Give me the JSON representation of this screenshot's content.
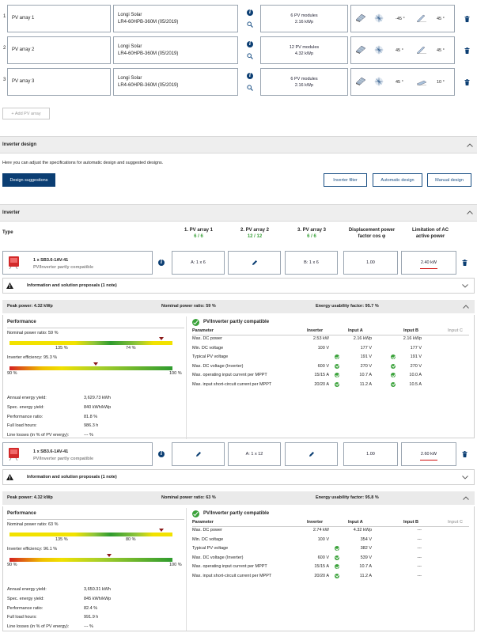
{
  "pv_arrays": [
    {
      "num": "1",
      "name": "PV array 1",
      "module_line1": "Longi Solar",
      "module_line2": "LR4-60HPB-360M (05/2019)",
      "modules": "6 PV modules",
      "power": "2.16 kWp",
      "azimuth": "-45 °",
      "tilt": "45 °"
    },
    {
      "num": "2",
      "name": "PV array 2",
      "module_line1": "Longi Solar",
      "module_line2": "LR4-60HPB-360M (05/2019)",
      "modules": "12 PV modules",
      "power": "4.32 kWp",
      "azimuth": "45 °",
      "tilt": "45 °"
    },
    {
      "num": "3",
      "name": "PV array 3",
      "module_line1": "Longi Solar",
      "module_line2": "LR4-60HPB-360M (05/2019)",
      "modules": "6 PV modules",
      "power": "2.16 kWp",
      "azimuth": "45 °",
      "tilt": "10 °"
    }
  ],
  "add_pv_array": "+ Add PV array",
  "inverter_design": {
    "title": "Inverter design",
    "description": "Here you can adjust the specifications for automatic design and suggested designs.",
    "btn_suggestions": "Design suggestions",
    "btn_filter": "Inverter filter",
    "btn_automatic": "Automatic design",
    "btn_manual": "Manual design"
  },
  "inverter_section": {
    "title": "Inverter",
    "col_type": "Type",
    "cols": [
      {
        "label": "1. PV array 1",
        "count": "6 / 6"
      },
      {
        "label": "2. PV array 2",
        "count": "12 / 12"
      },
      {
        "label": "3. PV array 3",
        "count": "6 / 6"
      }
    ],
    "col_cos_l1": "Displacement power",
    "col_cos_l2": "factor cos φ",
    "col_lim_l1": "Limitation of AC",
    "col_lim_l2": "active power"
  },
  "inverters": [
    {
      "name": "1 x SB3.6-1AV-41",
      "status": "PV/Inverter partly compatible",
      "assign": [
        "A: 1 x 6",
        "",
        "B: 1 x 6"
      ],
      "cos": "1.00",
      "limit": "2.40 kW",
      "notes": "Information and solution proposals (1 note)",
      "peak": "Peak power: 4.32 kWp",
      "nominal": "Nominal power ratio: 59 %",
      "energy": "Energy usability factor: 95.7 %",
      "perf_title": "Performance",
      "npr_label": "Nominal power ratio: 59 %",
      "npr_pct": 0.59,
      "npr_t1": "135 %",
      "npr_t2": "74 %",
      "eff_label": "Inverter efficiency: 95.3 %",
      "eff_pct": 0.53,
      "eff_t1": "90 %",
      "eff_t2": "100 %",
      "yield": [
        {
          "label": "Annual energy yield:",
          "value": "3,629.73 kWh"
        },
        {
          "label": "Spec. energy yield:",
          "value": "840 kWh/kWp"
        },
        {
          "label": "Performance ratio:",
          "value": "81.8 %"
        },
        {
          "label": "Full load hours:",
          "value": "986.3 h"
        },
        {
          "label": "Line losses (in % of PV energy):",
          "value": "--- %"
        }
      ],
      "compat_title": "PV/Inverter partly compatible",
      "table_headers": [
        "Parameter",
        "Inverter",
        "Input A",
        "Input B",
        "Input C"
      ],
      "rows": [
        {
          "p": "Max. DC power",
          "inv": "2.53 kW",
          "a": "2.16 kWp",
          "a_chk": false,
          "b": "2.16 kWp",
          "b_chk": false
        },
        {
          "p": "Min. DC voltage",
          "inv": "100 V",
          "a": "177 V",
          "a_chk": false,
          "b": "177 V",
          "b_chk": false
        },
        {
          "p": "Typical PV voltage",
          "inv": "",
          "a": "191 V",
          "a_chk": true,
          "b": "191 V",
          "b_chk": true
        },
        {
          "p": "Max. DC voltage (Inverter)",
          "inv": "600 V",
          "a": "270 V",
          "a_chk": true,
          "b": "270 V",
          "b_chk": true
        },
        {
          "p": "Max. operating input current per MPPT",
          "inv": "15/15 A",
          "a": "10.7 A",
          "a_chk": true,
          "b": "10.0 A",
          "b_chk": true
        },
        {
          "p": "Max. input short-circuit current per MPPT",
          "inv": "20/20 A",
          "a": "11.2 A",
          "a_chk": true,
          "b": "10.5 A",
          "b_chk": true
        }
      ]
    },
    {
      "name": "1 x SB3.6-1AV-41",
      "status": "PV/Inverter partly compatible",
      "assign": [
        "",
        "A: 1 x 12",
        ""
      ],
      "cos": "1.00",
      "limit": "2.60 kW",
      "notes": "Information and solution proposals (1 note)",
      "peak": "Peak power: 4.32 kWp",
      "nominal": "Nominal power ratio: 63 %",
      "energy": "Energy usability factor: 95.8 %",
      "perf_title": "Performance",
      "npr_label": "Nominal power ratio: 63 %",
      "npr_pct": 0.63,
      "npr_t1": "135 %",
      "npr_t2": "80 %",
      "eff_label": "Inverter efficiency: 96.1 %",
      "eff_pct": 0.61,
      "eff_t1": "90 %",
      "eff_t2": "100 %",
      "yield": [
        {
          "label": "Annual energy yield:",
          "value": "3,650.31 kWh"
        },
        {
          "label": "Spec. energy yield:",
          "value": "845 kWh/kWp"
        },
        {
          "label": "Performance ratio:",
          "value": "82.4 %"
        },
        {
          "label": "Full load hours:",
          "value": "991.9 h"
        },
        {
          "label": "Line losses (in % of PV energy):",
          "value": "--- %"
        }
      ],
      "compat_title": "PV/Inverter partly compatible",
      "table_headers": [
        "Parameter",
        "Inverter",
        "Input A",
        "Input B",
        "Input C"
      ],
      "rows": [
        {
          "p": "Max. DC power",
          "inv": "2.74 kW",
          "a": "4.32 kWp",
          "a_chk": false,
          "b": "---",
          "b_chk": false
        },
        {
          "p": "Min. DC voltage",
          "inv": "100 V",
          "a": "354 V",
          "a_chk": false,
          "b": "---",
          "b_chk": false
        },
        {
          "p": "Typical PV voltage",
          "inv": "",
          "a": "382 V",
          "a_chk": true,
          "b": "---",
          "b_chk": false
        },
        {
          "p": "Max. DC voltage (Inverter)",
          "inv": "600 V",
          "a": "539 V",
          "a_chk": true,
          "b": "---",
          "b_chk": false
        },
        {
          "p": "Max. operating input current per MPPT",
          "inv": "15/15 A",
          "a": "10.7 A",
          "a_chk": true,
          "b": "---",
          "b_chk": false
        },
        {
          "p": "Max. input short-circuit current per MPPT",
          "inv": "20/20 A",
          "a": "11.2 A",
          "a_chk": true,
          "b": "---",
          "b_chk": false
        }
      ]
    }
  ],
  "colors": {
    "primary": "#0b3e73",
    "ok": "#3aa23a",
    "alert": "#d01010"
  }
}
